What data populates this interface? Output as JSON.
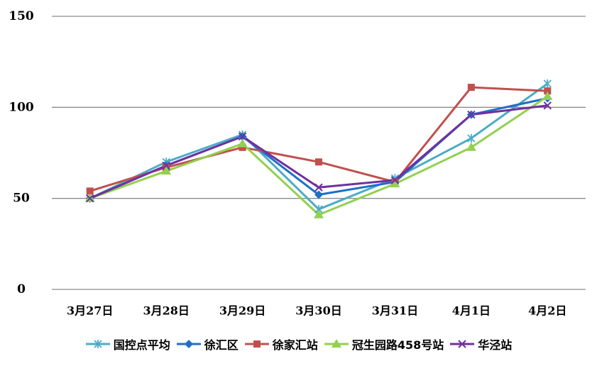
{
  "chart_data": {
    "type": "line",
    "categories": [
      "3月27日",
      "3月28日",
      "3月29日",
      "3月30日",
      "3月31日",
      "4月1日",
      "4月2日"
    ],
    "ylim": [
      0,
      150
    ],
    "yticks": [
      0,
      50,
      100,
      150
    ],
    "grid": true,
    "legend_position": "bottom",
    "series": [
      {
        "name": "国控点平均",
        "color": "#4bacc6",
        "marker": "asterisk",
        "values": [
          50,
          70,
          85,
          44,
          61,
          83,
          113
        ]
      },
      {
        "name": "徐汇区",
        "color": "#1f6fc4",
        "marker": "diamond",
        "values": [
          50,
          68,
          84,
          52,
          59,
          96,
          105
        ]
      },
      {
        "name": "徐家汇站",
        "color": "#c0504d",
        "marker": "square",
        "values": [
          54,
          67,
          78,
          70,
          59,
          111,
          109
        ]
      },
      {
        "name": "冠生园路458号站",
        "color": "#92d050",
        "marker": "triangle",
        "values": [
          50,
          65,
          80,
          41,
          58,
          78,
          106
        ]
      },
      {
        "name": "华泾站",
        "color": "#7030a0",
        "marker": "star",
        "values": [
          50,
          68,
          84,
          56,
          60,
          96,
          101
        ]
      }
    ]
  }
}
